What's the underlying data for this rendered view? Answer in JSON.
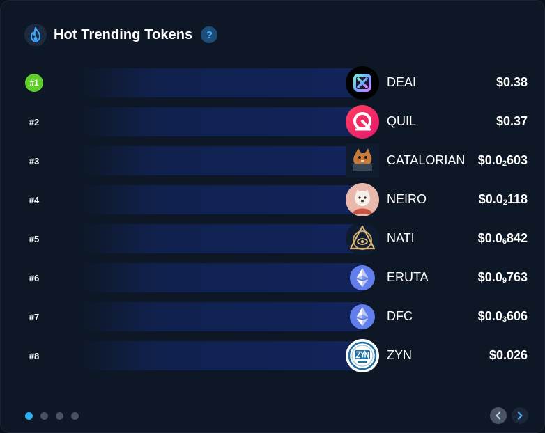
{
  "header": {
    "title": "Hot Trending Tokens",
    "help_label": "?"
  },
  "colors": {
    "accent_green": "#5fcd2a",
    "accent_blue": "#2fb0f5",
    "bar": "#11235a"
  },
  "tokens": [
    {
      "rank": "#1",
      "name": "DEAI",
      "price_main": "$0.38",
      "price_zeros": "",
      "price_tail": "",
      "logo": "deai-logo-icon"
    },
    {
      "rank": "#2",
      "name": "QUIL",
      "price_main": "$0.37",
      "price_zeros": "",
      "price_tail": "",
      "logo": "quil-logo-icon"
    },
    {
      "rank": "#3",
      "name": "CATALORIAN",
      "price_main": "$0.0",
      "price_zeros": "2",
      "price_tail": "603",
      "logo": "catalorian-logo-icon"
    },
    {
      "rank": "#4",
      "name": "NEIRO",
      "price_main": "$0.0",
      "price_zeros": "2",
      "price_tail": "118",
      "logo": "neiro-logo-icon"
    },
    {
      "rank": "#5",
      "name": "NATI",
      "price_main": "$0.0",
      "price_zeros": "6",
      "price_tail": "842",
      "logo": "nati-logo-icon"
    },
    {
      "rank": "#6",
      "name": "ERUTA",
      "price_main": "$0.0",
      "price_zeros": "9",
      "price_tail": "763",
      "logo": "ethereum-icon"
    },
    {
      "rank": "#7",
      "name": "DFC",
      "price_main": "$0.0",
      "price_zeros": "3",
      "price_tail": "606",
      "logo": "ethereum-icon"
    },
    {
      "rank": "#8",
      "name": "ZYN",
      "price_main": "$0.026",
      "price_zeros": "",
      "price_tail": "",
      "logo": "zyn-logo-icon"
    }
  ],
  "pagination": {
    "pages": 4,
    "active_page": 1
  }
}
